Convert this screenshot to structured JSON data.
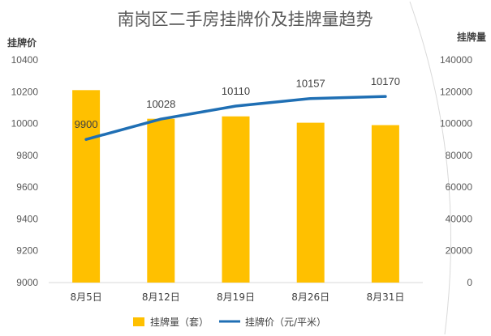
{
  "chart_data": {
    "type": "bar",
    "title": "南岗区二手房挂牌价及挂牌量趋势",
    "categories": [
      "8月5日",
      "8月12日",
      "8月19日",
      "8月26日",
      "8月31日"
    ],
    "ylabel_left": "挂牌价",
    "ylabel_right": "挂牌量",
    "ylim_left": [
      9000,
      10400
    ],
    "yticks_left": [
      9000,
      9200,
      9400,
      9600,
      9800,
      10000,
      10200,
      10400
    ],
    "ylim_right": [
      0,
      140000
    ],
    "yticks_right": [
      0,
      20000,
      40000,
      60000,
      80000,
      100000,
      120000,
      140000
    ],
    "grid": false,
    "legend_position": "bottom",
    "series": [
      {
        "name": "挂牌量（套）",
        "type": "bar",
        "axis": "right",
        "color": "#FFC000",
        "values": [
          121000,
          103000,
          104500,
          100500,
          99000
        ]
      },
      {
        "name": "挂牌价（元/平米）",
        "type": "line",
        "axis": "left",
        "color": "#1F6FB4",
        "values": [
          9900,
          10028,
          10110,
          10157,
          10170
        ],
        "data_labels": [
          "9900",
          "10028",
          "10110",
          "10157",
          "10170"
        ]
      }
    ]
  }
}
